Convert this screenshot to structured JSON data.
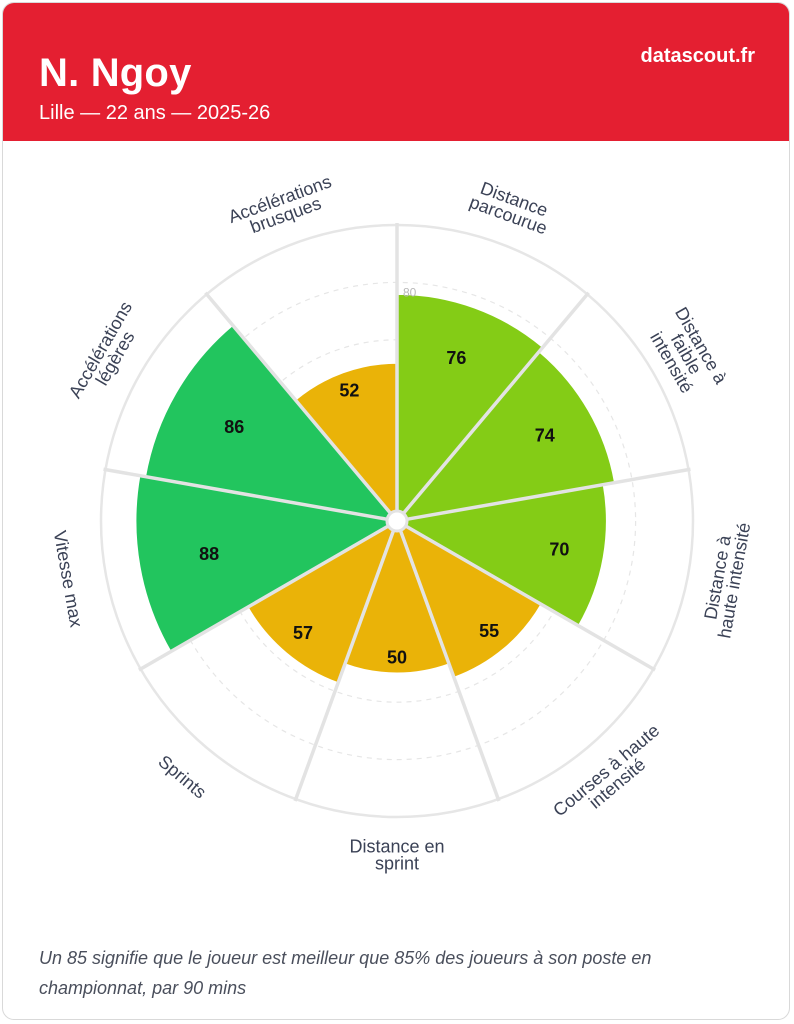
{
  "header": {
    "name": "N. Ngoy",
    "subtitle": "Lille — 22 ans — 2025-26",
    "brand": "datascout.fr"
  },
  "chart_data": {
    "type": "polar-bar",
    "range": [
      0,
      100
    ],
    "tick_label": "80",
    "categories": [
      [
        "Distance",
        "parcourue"
      ],
      [
        "Distance à",
        "faible",
        "intensité"
      ],
      [
        "Distance à",
        "haute intensité"
      ],
      [
        "Courses à haute",
        "intensité"
      ],
      [
        "Distance en",
        "sprint"
      ],
      [
        "Sprints"
      ],
      [
        "Vitesse max"
      ],
      [
        "Accélérations",
        "légères"
      ],
      [
        "Accélérations",
        "brusques"
      ]
    ],
    "values": [
      76,
      74,
      70,
      55,
      50,
      57,
      88,
      86,
      52
    ],
    "colors": {
      "high": "#22c55e",
      "mid_high": "#84cc16",
      "mid": "#eab308",
      "grid": "#e6e6e6",
      "background": "#ffffff"
    }
  },
  "footnote": "Un 85 signifie que le joueur est meilleur que 85% des joueurs à son poste en championnat, par 90 mins"
}
